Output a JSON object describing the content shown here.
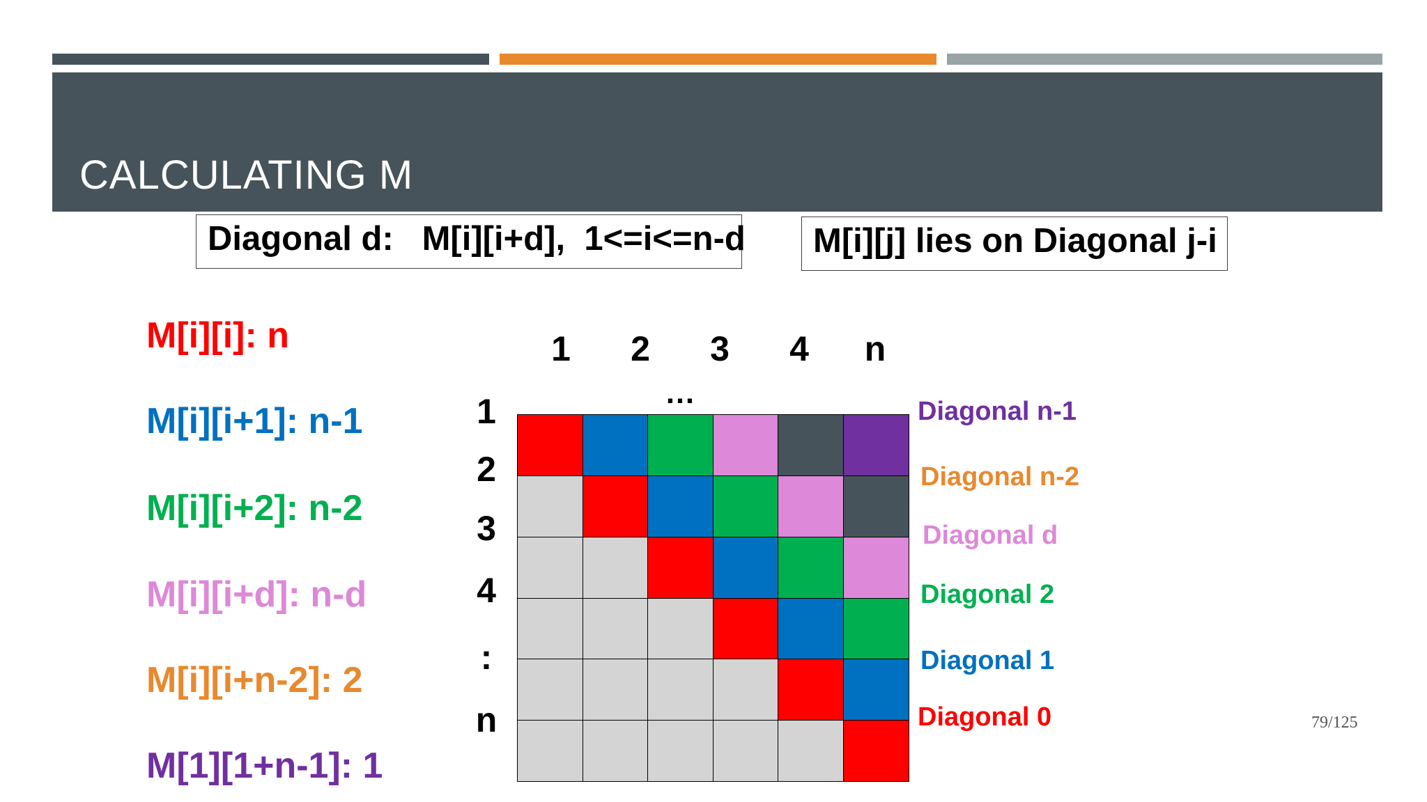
{
  "topbar_colors": [
    "#47535a",
    "#e8892e",
    "#9aa3a6"
  ],
  "header_color": "#47535a",
  "title": "CALCULATING M",
  "box_left": "Diagonal d:   M[i][i+d],  1<=i<=n-d",
  "box_right": "M[i][j] lies on Diagonal j-i",
  "left_labels": [
    {
      "text": "M[i][i]: n",
      "color": "#ff0000"
    },
    {
      "text": "M[i][i+1]: n-1",
      "color": "#0070c0"
    },
    {
      "text": "M[i][i+2]: n-2",
      "color": "#00b050"
    },
    {
      "text": "M[i][i+d]: n-d",
      "color": "#dd88d8"
    },
    {
      "text": "M[i][i+n-2]: 2",
      "color": "#e8892e"
    },
    {
      "text": "M[1][1+n-1]: 1",
      "color": "#7030a0"
    }
  ],
  "column_headers": [
    "1",
    "2",
    "3",
    "4",
    "n"
  ],
  "column_ellipsis": "…",
  "row_headers": [
    "1",
    "2",
    "3",
    "4",
    ":",
    "n"
  ],
  "diagonal_colors": [
    "#ff0000",
    "#0070c0",
    "#00b050",
    "#dd88d8",
    "#47535a",
    "#7030a0"
  ],
  "empty_color": "#d4d4d4",
  "right_labels": [
    {
      "text": "Diagonal n-1",
      "color": "#7030a0"
    },
    {
      "text": "Diagonal n-2",
      "color": "#e8892e"
    },
    {
      "text": "Diagonal d",
      "color": "#dd88d8"
    },
    {
      "text": "Diagonal 2",
      "color": "#00b050"
    },
    {
      "text": "Diagonal 1",
      "color": "#0070c0"
    },
    {
      "text": "Diagonal 0",
      "color": "#ff0000"
    }
  ],
  "page_number": "79/125"
}
